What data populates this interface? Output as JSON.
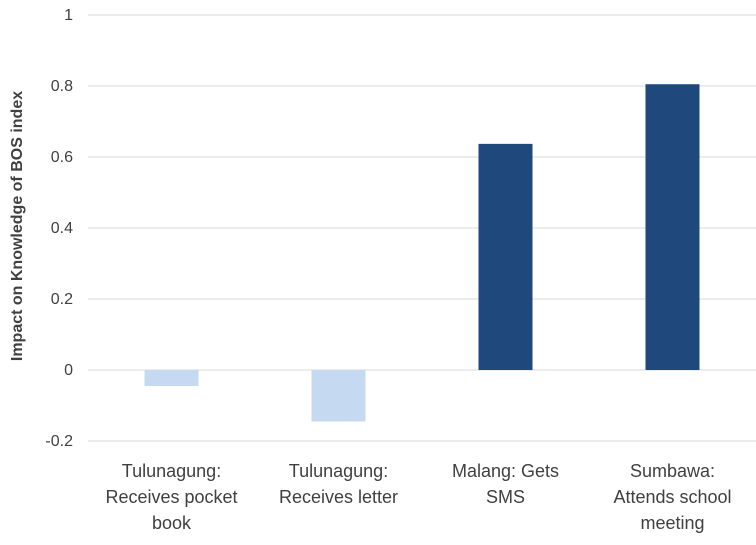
{
  "chart_data": {
    "type": "bar",
    "title": "",
    "xlabel": "",
    "ylabel": "Impact on Knowledge of BOS index",
    "ylim": [
      -0.2,
      1
    ],
    "yticks": [
      -0.2,
      0,
      0.2,
      0.4,
      0.6,
      0.8,
      1
    ],
    "ytick_labels": [
      "-0.2",
      "0",
      "0.2",
      "0.4",
      "0.6",
      "0.8",
      "1"
    ],
    "grid": true,
    "categories": [
      [
        "Tulunagung:",
        "Receives pocket",
        "book"
      ],
      [
        "Tulunagung:",
        "Receives letter"
      ],
      [
        "Malang: Gets",
        "SMS"
      ],
      [
        "Sumbawa:",
        "Attends school",
        "meeting"
      ]
    ],
    "values": [
      -0.045,
      -0.145,
      0.637,
      0.805
    ],
    "colors": [
      "#c5d9f1",
      "#c5d9f1",
      "#1f497d",
      "#1f497d"
    ]
  }
}
